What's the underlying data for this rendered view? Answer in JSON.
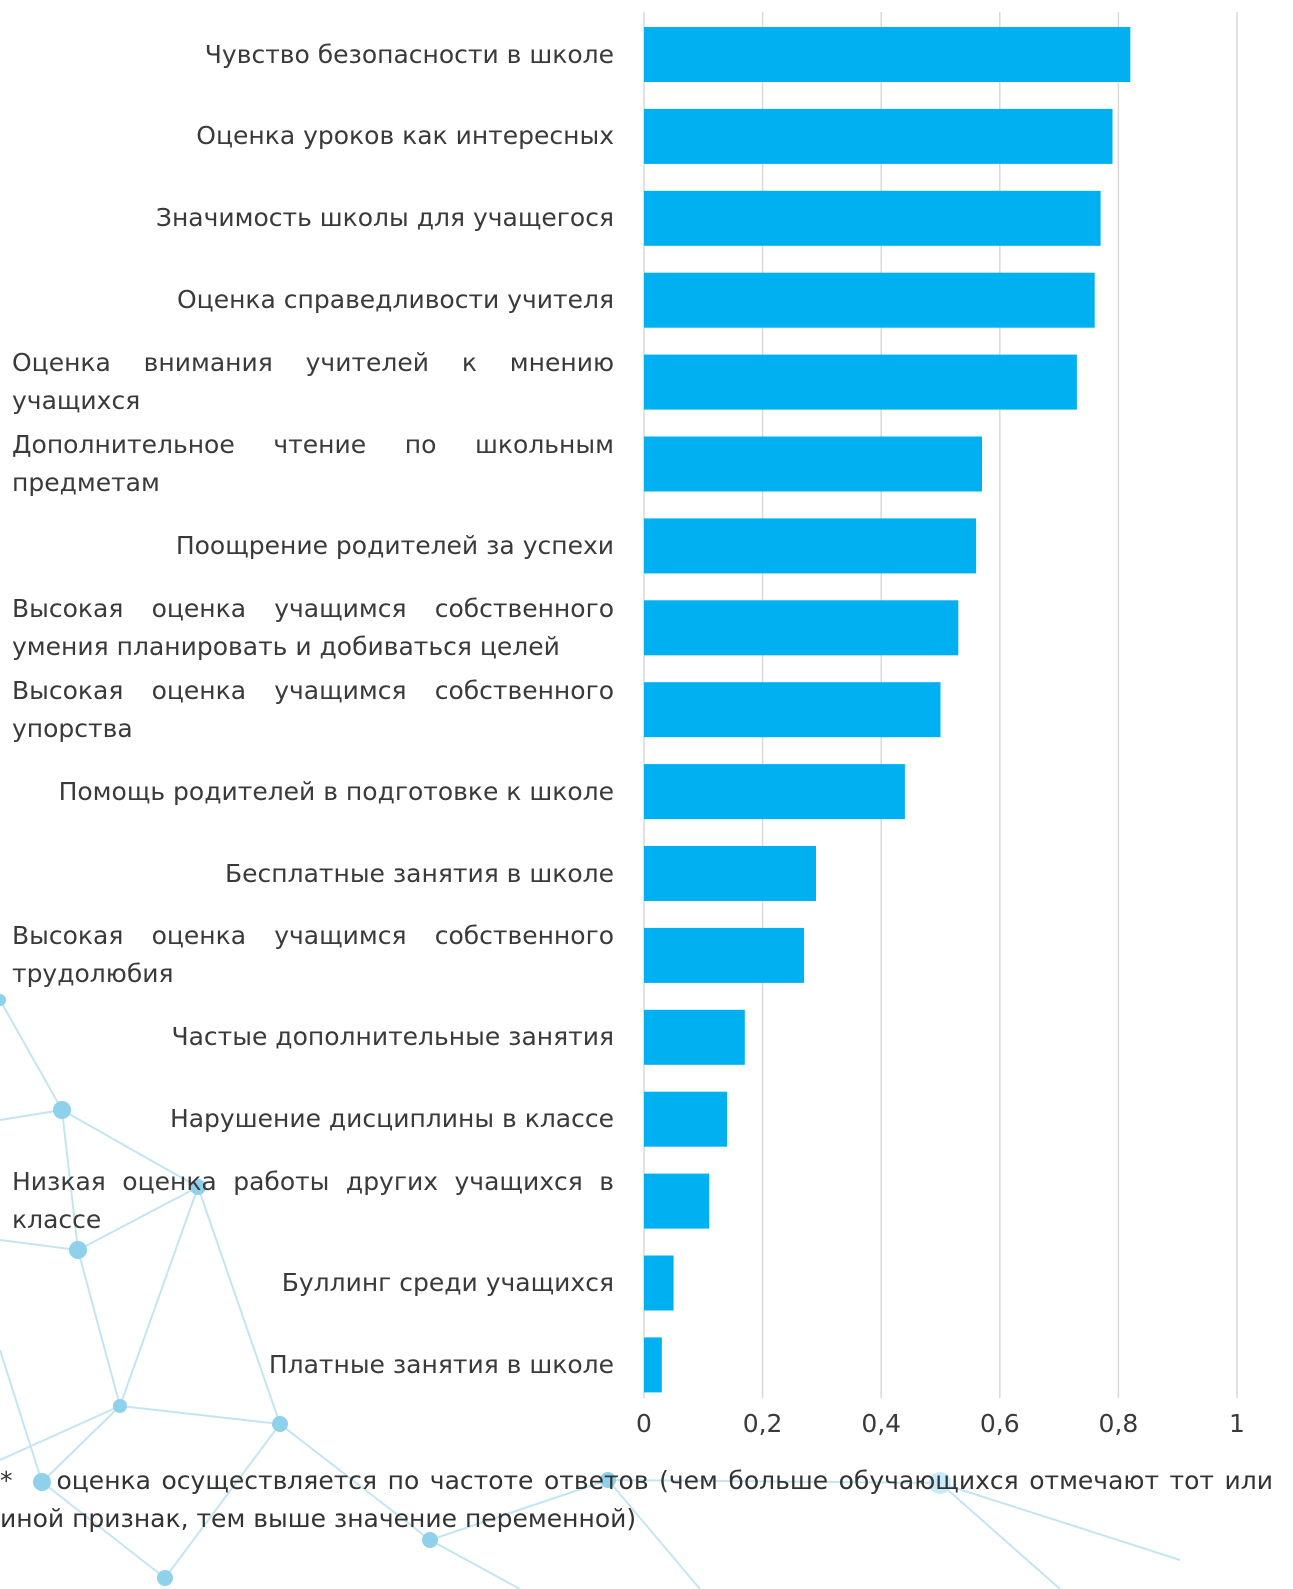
{
  "chart_data": {
    "type": "bar",
    "orientation": "horizontal",
    "categories": [
      "Чувство безопасности в школе",
      "Оценка уроков как интересных",
      "Значимость школы для учащегося",
      "Оценка справедливости учителя",
      "Оценка внимания учителей к мнению учащихся",
      "Дополнительное чтение по школьным предметам",
      "Поощрение родителей за успехи",
      "Высокая оценка учащимся собственного умения планировать и добиваться целей",
      "Высокая оценка учащимся собственного упорства",
      "Помощь родителей в подготовке к школе",
      "Бесплатные занятия в школе",
      "Высокая оценка учащимся собственного трудолюбия",
      "Частые дополнительные занятия",
      "Нарушение дисциплины в классе",
      "Низкая оценка работы других учащихся в классе",
      "Буллинг среди учащихся",
      "Платные занятия в школе"
    ],
    "values": [
      0.82,
      0.79,
      0.77,
      0.76,
      0.73,
      0.57,
      0.56,
      0.53,
      0.5,
      0.44,
      0.29,
      0.27,
      0.17,
      0.14,
      0.11,
      0.05,
      0.03
    ],
    "xlim": [
      0,
      1
    ],
    "xticks": [
      0,
      0.2,
      0.4,
      0.6,
      0.8,
      1
    ],
    "xtick_labels": [
      "0",
      "0,2",
      "0,4",
      "0,6",
      "0,8",
      "1"
    ],
    "title": "",
    "xlabel": "",
    "ylabel": "",
    "grid": "vertical",
    "legend": "none",
    "bar_color": "#00b0f0",
    "grid_color": "#d9d9d9"
  },
  "footnote": {
    "mark": "*",
    "text": "оценка осуществляется по частоте ответов (чем больше обучающихся отмечают тот или иной признак, тем выше значение переменной)"
  }
}
